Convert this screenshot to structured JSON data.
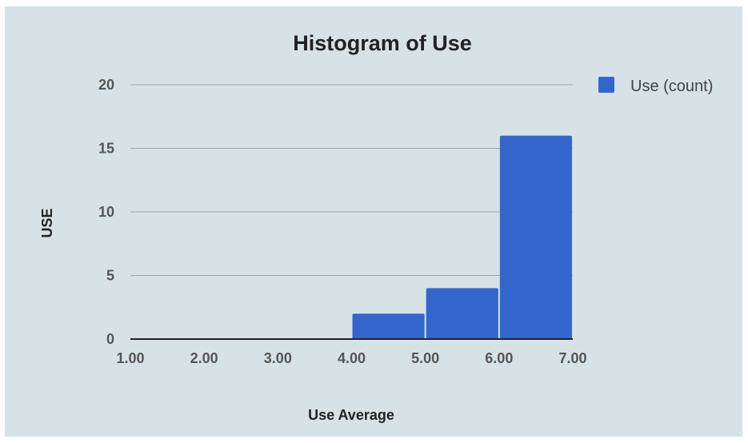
{
  "chart_data": {
    "type": "bar",
    "title": "Histogram of Use",
    "xlabel": "Use Average",
    "ylabel": "USE",
    "bins": [
      {
        "start": 1.0,
        "end": 2.0,
        "value": 0
      },
      {
        "start": 2.0,
        "end": 3.0,
        "value": 0
      },
      {
        "start": 3.0,
        "end": 4.0,
        "value": 0
      },
      {
        "start": 4.0,
        "end": 5.0,
        "value": 2
      },
      {
        "start": 5.0,
        "end": 6.0,
        "value": 4
      },
      {
        "start": 6.0,
        "end": 7.0,
        "value": 16
      }
    ],
    "series": [
      {
        "name": "Use (count)",
        "color": "#3366cc"
      }
    ],
    "x_ticks": [
      "1.00",
      "2.00",
      "3.00",
      "4.00",
      "5.00",
      "6.00",
      "7.00"
    ],
    "x_tick_values": [
      1,
      2,
      3,
      4,
      5,
      6,
      7
    ],
    "y_ticks": [
      "0",
      "5",
      "10",
      "15",
      "20"
    ],
    "y_tick_values": [
      0,
      5,
      10,
      15,
      20
    ],
    "xlim": [
      1,
      7
    ],
    "ylim": [
      0,
      20
    ],
    "grid": true,
    "legend": "right",
    "colors": {
      "bar": "#3366cc",
      "background": "#d6e2e6",
      "grid": "#9aa5a9",
      "axis": "#222222"
    }
  }
}
